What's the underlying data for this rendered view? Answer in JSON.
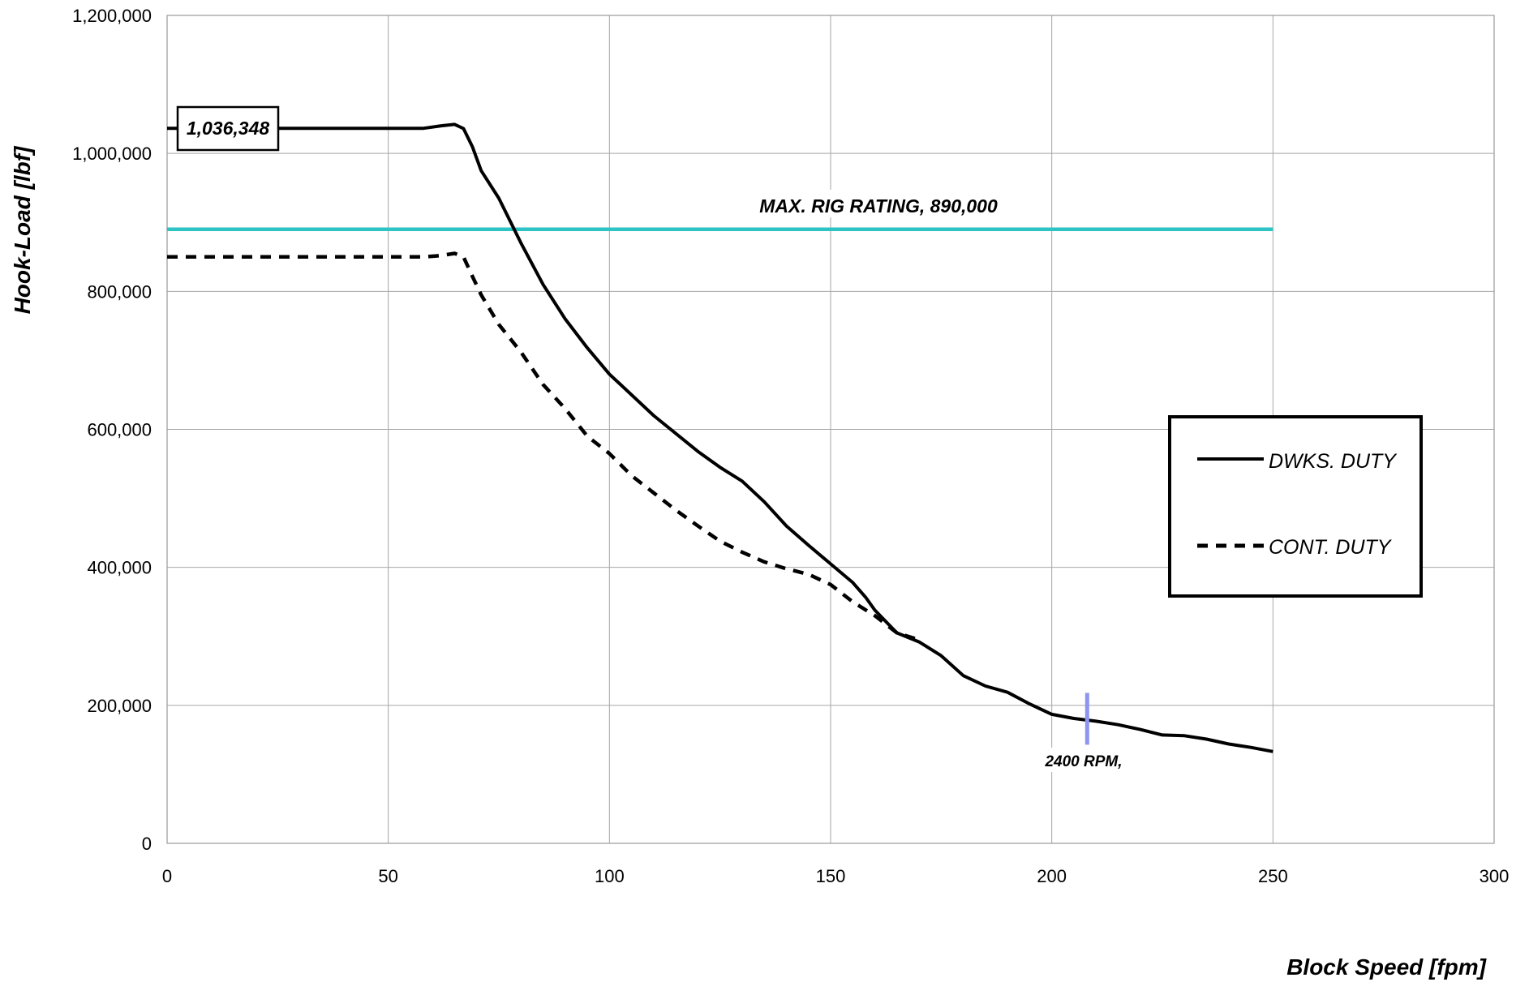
{
  "chart_data": {
    "type": "line",
    "xlabel": "Block Speed [fpm]",
    "ylabel": "Hook-Load [lbf]",
    "xlim": [
      0,
      300
    ],
    "ylim": [
      0,
      1200000
    ],
    "xticks": [
      0,
      50,
      100,
      150,
      200,
      250,
      300
    ],
    "xtick_labels": [
      "0",
      "50",
      "100",
      "150",
      "200",
      "250",
      "300"
    ],
    "yticks": [
      0,
      200000,
      400000,
      600000,
      800000,
      1000000,
      1200000
    ],
    "ytick_labels": [
      "0",
      "200,000",
      "400,000",
      "600,000",
      "800,000",
      "1,000,000",
      "1,200,000"
    ],
    "grid": true,
    "legend_position": "right",
    "series": [
      {
        "name": "DWKS. DUTY",
        "style": "solid",
        "color": "#000000",
        "points": [
          [
            0,
            1036348
          ],
          [
            58,
            1036348
          ],
          [
            62,
            1040000
          ],
          [
            65,
            1042000
          ],
          [
            67,
            1036000
          ],
          [
            69,
            1010000
          ],
          [
            71,
            975000
          ],
          [
            75,
            935000
          ],
          [
            80,
            870000
          ],
          [
            85,
            810000
          ],
          [
            90,
            760000
          ],
          [
            95,
            718000
          ],
          [
            100,
            680000
          ],
          [
            110,
            620000
          ],
          [
            120,
            568000
          ],
          [
            125,
            545000
          ],
          [
            130,
            525000
          ],
          [
            135,
            495000
          ],
          [
            140,
            460000
          ],
          [
            145,
            432000
          ],
          [
            150,
            405000
          ],
          [
            155,
            378000
          ],
          [
            158,
            356000
          ],
          [
            160,
            338000
          ],
          [
            163,
            318000
          ],
          [
            165,
            305000
          ],
          [
            170,
            292000
          ],
          [
            175,
            272000
          ],
          [
            180,
            243000
          ],
          [
            185,
            228000
          ],
          [
            190,
            219000
          ],
          [
            195,
            202000
          ],
          [
            200,
            187000
          ],
          [
            205,
            181000
          ],
          [
            210,
            177000
          ],
          [
            215,
            172000
          ],
          [
            220,
            165000
          ],
          [
            225,
            157000
          ],
          [
            230,
            156000
          ],
          [
            235,
            151000
          ],
          [
            240,
            144000
          ],
          [
            245,
            139000
          ],
          [
            250,
            133000
          ]
        ]
      },
      {
        "name": "CONT. DUTY",
        "style": "dashed",
        "color": "#000000",
        "points": [
          [
            0,
            850000
          ],
          [
            58,
            850000
          ],
          [
            62,
            852000
          ],
          [
            65,
            855000
          ],
          [
            67,
            850000
          ],
          [
            69,
            822000
          ],
          [
            71,
            795000
          ],
          [
            75,
            752000
          ],
          [
            80,
            712000
          ],
          [
            85,
            665000
          ],
          [
            90,
            630000
          ],
          [
            95,
            590000
          ],
          [
            100,
            565000
          ],
          [
            105,
            533000
          ],
          [
            110,
            508000
          ],
          [
            115,
            483000
          ],
          [
            120,
            460000
          ],
          [
            125,
            438000
          ],
          [
            130,
            422000
          ],
          [
            135,
            408000
          ],
          [
            140,
            398000
          ],
          [
            145,
            390000
          ],
          [
            150,
            375000
          ],
          [
            155,
            350000
          ],
          [
            160,
            330000
          ],
          [
            165,
            305000
          ],
          [
            170,
            295000
          ]
        ]
      },
      {
        "name": "MAX. RIG RATING",
        "style": "solid",
        "color": "#2ec4c6",
        "points": [
          [
            0,
            890000
          ],
          [
            250,
            890000
          ]
        ]
      }
    ],
    "marker": {
      "x": 208,
      "y_range": [
        143000,
        218000
      ],
      "color": "#8f95ee"
    },
    "annotations": {
      "max_label": "1,036,348",
      "rig_rating_label": "MAX. RIG RATING, 890,000",
      "rpm_label": "2400 RPM,"
    },
    "legend": [
      {
        "label": "DWKS. DUTY",
        "style": "solid"
      },
      {
        "label": "CONT. DUTY",
        "style": "dashed"
      }
    ]
  }
}
